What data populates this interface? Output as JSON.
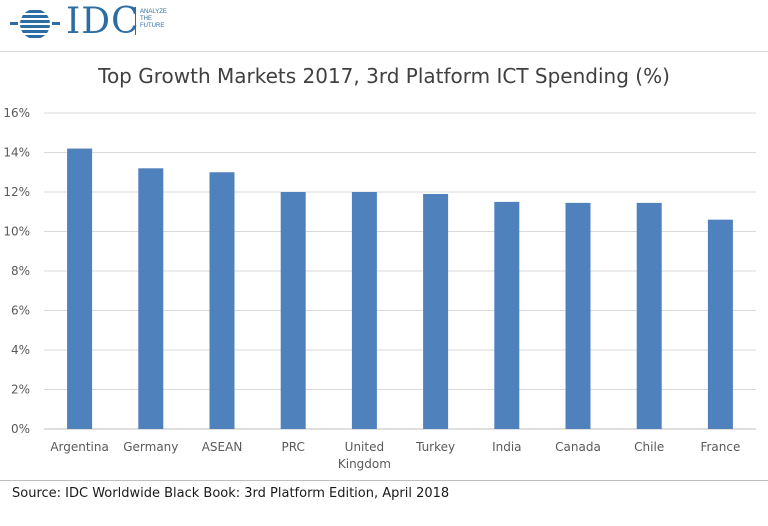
{
  "brand": {
    "logo_text": "IDC",
    "tagline_lines": [
      "ANALYZE",
      "THE",
      "FUTURE"
    ]
  },
  "chart_data": {
    "type": "bar",
    "title": "Top Growth Markets 2017, 3rd Platform ICT Spending (%)",
    "xlabel": "",
    "ylabel": "",
    "categories": [
      "Argentina",
      "Germany",
      "ASEAN",
      "PRC",
      "United Kingdom",
      "Turkey",
      "India",
      "Canada",
      "Chile",
      "France"
    ],
    "category_label_lines": [
      [
        "Argentina"
      ],
      [
        "Germany"
      ],
      [
        "ASEAN"
      ],
      [
        "PRC"
      ],
      [
        "United",
        "Kingdom"
      ],
      [
        "Turkey"
      ],
      [
        "India"
      ],
      [
        "Canada"
      ],
      [
        "Chile"
      ],
      [
        "France"
      ]
    ],
    "values": [
      14.2,
      13.2,
      13.0,
      12.0,
      12.0,
      11.9,
      11.5,
      11.45,
      11.45,
      10.6
    ],
    "ylim": [
      0,
      16
    ],
    "yticks": [
      0,
      2,
      4,
      6,
      8,
      10,
      12,
      14,
      16
    ],
    "ytick_labels": [
      "0%",
      "2%",
      "4%",
      "6%",
      "8%",
      "10%",
      "12%",
      "14%",
      "16%"
    ],
    "grid": true,
    "legend": "none",
    "bar_color": "#4f81bd",
    "grid_color": "#d9d9d9"
  },
  "source": "Source: IDC Worldwide Black Book: 3rd Platform Edition, April 2018"
}
